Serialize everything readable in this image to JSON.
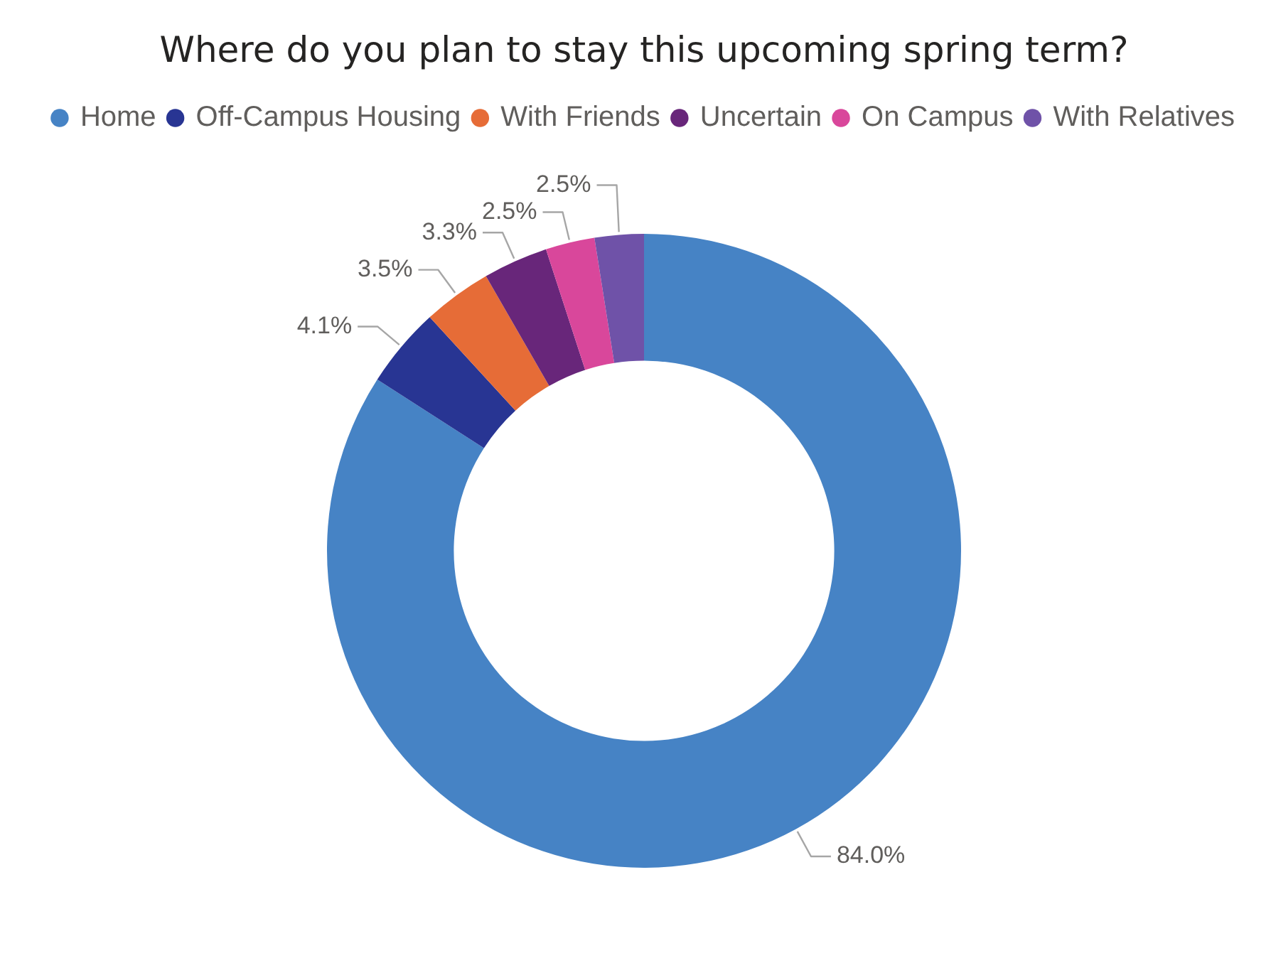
{
  "chart_data": {
    "type": "donut",
    "title": "Where do you plan to stay this upcoming spring term?",
    "categories": [
      "Home",
      "Off-Campus Housing",
      "With Friends",
      "Uncertain",
      "On Campus",
      "With Relatives"
    ],
    "values": [
      84.0,
      4.1,
      3.5,
      3.3,
      2.5,
      2.5
    ],
    "colors": [
      "#4683c5",
      "#283593",
      "#e66c37",
      "#68267a",
      "#d9479b",
      "#6f52a8"
    ],
    "value_labels": [
      "84.0%",
      "4.1%",
      "3.5%",
      "3.3%",
      "2.5%",
      "2.5%"
    ],
    "legend": "top"
  }
}
